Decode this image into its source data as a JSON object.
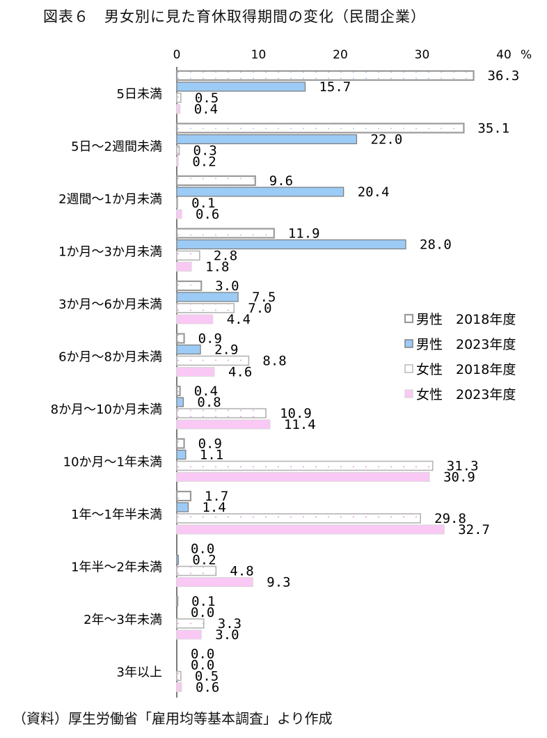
{
  "title": "図表６　男女別に見た育休取得期間の変化（民間企業）",
  "source": "（資料）厚生労働省「雇用均等基本調査」より作成",
  "colors": {
    "male_2018": "#ffffff",
    "male_2018_border": "#9a9a9a",
    "male_2023": "#9ccbf5",
    "male_2023_border": "#7a7a7a",
    "female_2018": "#ffffff",
    "female_2018_border": "#b4b4b4",
    "female_2023": "#fac8f4",
    "female_2023_border": "#d8d8d8",
    "male_dot": "#a9c9e6",
    "female_dot": "#e39be0"
  },
  "chart_data": {
    "type": "bar",
    "orientation": "horizontal",
    "title": "図表６　男女別に見た育休取得期間の変化（民間企業）",
    "unit": "%",
    "xlim": [
      0,
      40
    ],
    "xticks": [
      "0",
      "10",
      "20",
      "30",
      "40"
    ],
    "legend_position": "right",
    "categories": [
      "5日未満",
      "5日～2週間未満",
      "2週間～1か月未満",
      "1か月～3か月未満",
      "3か月～6か月未満",
      "6か月～8か月未満",
      "8か月～10か月未満",
      "10か月～1年未満",
      "1年～1年半未満",
      "1年半～2年未満",
      "2年～3年未満",
      "3年以上"
    ],
    "series": [
      {
        "name": "男性　2018年度",
        "values": [
          36.3,
          35.1,
          9.6,
          11.9,
          3.0,
          0.9,
          0.4,
          0.9,
          1.7,
          0.0,
          0.1,
          0.0
        ],
        "labels": [
          "36.3",
          "35.1",
          "9.6",
          "11.9",
          "3.0",
          "0.9",
          "0.4",
          "0.9",
          "1.7",
          "0.0",
          "0.1",
          "0.0"
        ]
      },
      {
        "name": "男性　2023年度",
        "values": [
          15.7,
          22.0,
          20.4,
          28.0,
          7.5,
          2.9,
          0.8,
          1.1,
          1.4,
          0.2,
          0.0,
          0.0
        ],
        "labels": [
          "15.7",
          "22.0",
          "20.4",
          "28.0",
          "7.5",
          "2.9",
          "0.8",
          "1.1",
          "1.4",
          "0.2",
          "0.0",
          "0.0"
        ]
      },
      {
        "name": "女性　2018年度",
        "values": [
          0.5,
          0.3,
          0.1,
          2.8,
          7.0,
          8.8,
          10.9,
          31.3,
          29.8,
          4.8,
          3.3,
          0.5
        ],
        "labels": [
          "0.5",
          "0.3",
          "0.1",
          "2.8",
          "7.0",
          "8.8",
          "10.9",
          "31.3",
          "29.8",
          "4.8",
          "3.3",
          "0.5"
        ]
      },
      {
        "name": "女性　2023年度",
        "values": [
          0.4,
          0.2,
          0.6,
          1.8,
          4.4,
          4.6,
          11.4,
          30.9,
          32.7,
          9.3,
          3.0,
          0.6
        ],
        "labels": [
          "0.4",
          "0.2",
          "0.6",
          "1.8",
          "4.4",
          "4.6",
          "11.4",
          "30.9",
          "32.7",
          "9.3",
          "3.0",
          "0.6"
        ]
      }
    ]
  }
}
